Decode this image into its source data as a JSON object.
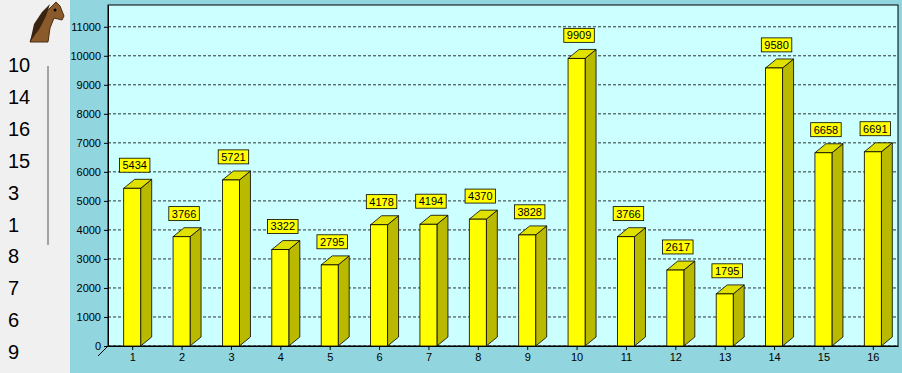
{
  "chart_data": {
    "type": "bar",
    "categories": [
      "1",
      "2",
      "3",
      "4",
      "5",
      "6",
      "7",
      "8",
      "9",
      "10",
      "11",
      "12",
      "13",
      "14",
      "15",
      "16"
    ],
    "values": [
      5434,
      3766,
      5721,
      3322,
      2795,
      4178,
      4194,
      4370,
      3828,
      9909,
      3766,
      2617,
      1795,
      9580,
      6658,
      6691
    ],
    "color": "#ffff00",
    "ylim": [
      0,
      11750
    ],
    "yticks": [
      0,
      1000,
      2000,
      3000,
      4000,
      5000,
      6000,
      7000,
      8000,
      9000,
      10000,
      11000
    ],
    "grid": true,
    "data_labels": true
  },
  "sidebar": {
    "ranking": [
      10,
      14,
      16,
      15,
      3,
      1,
      8,
      7,
      6,
      9
    ]
  }
}
